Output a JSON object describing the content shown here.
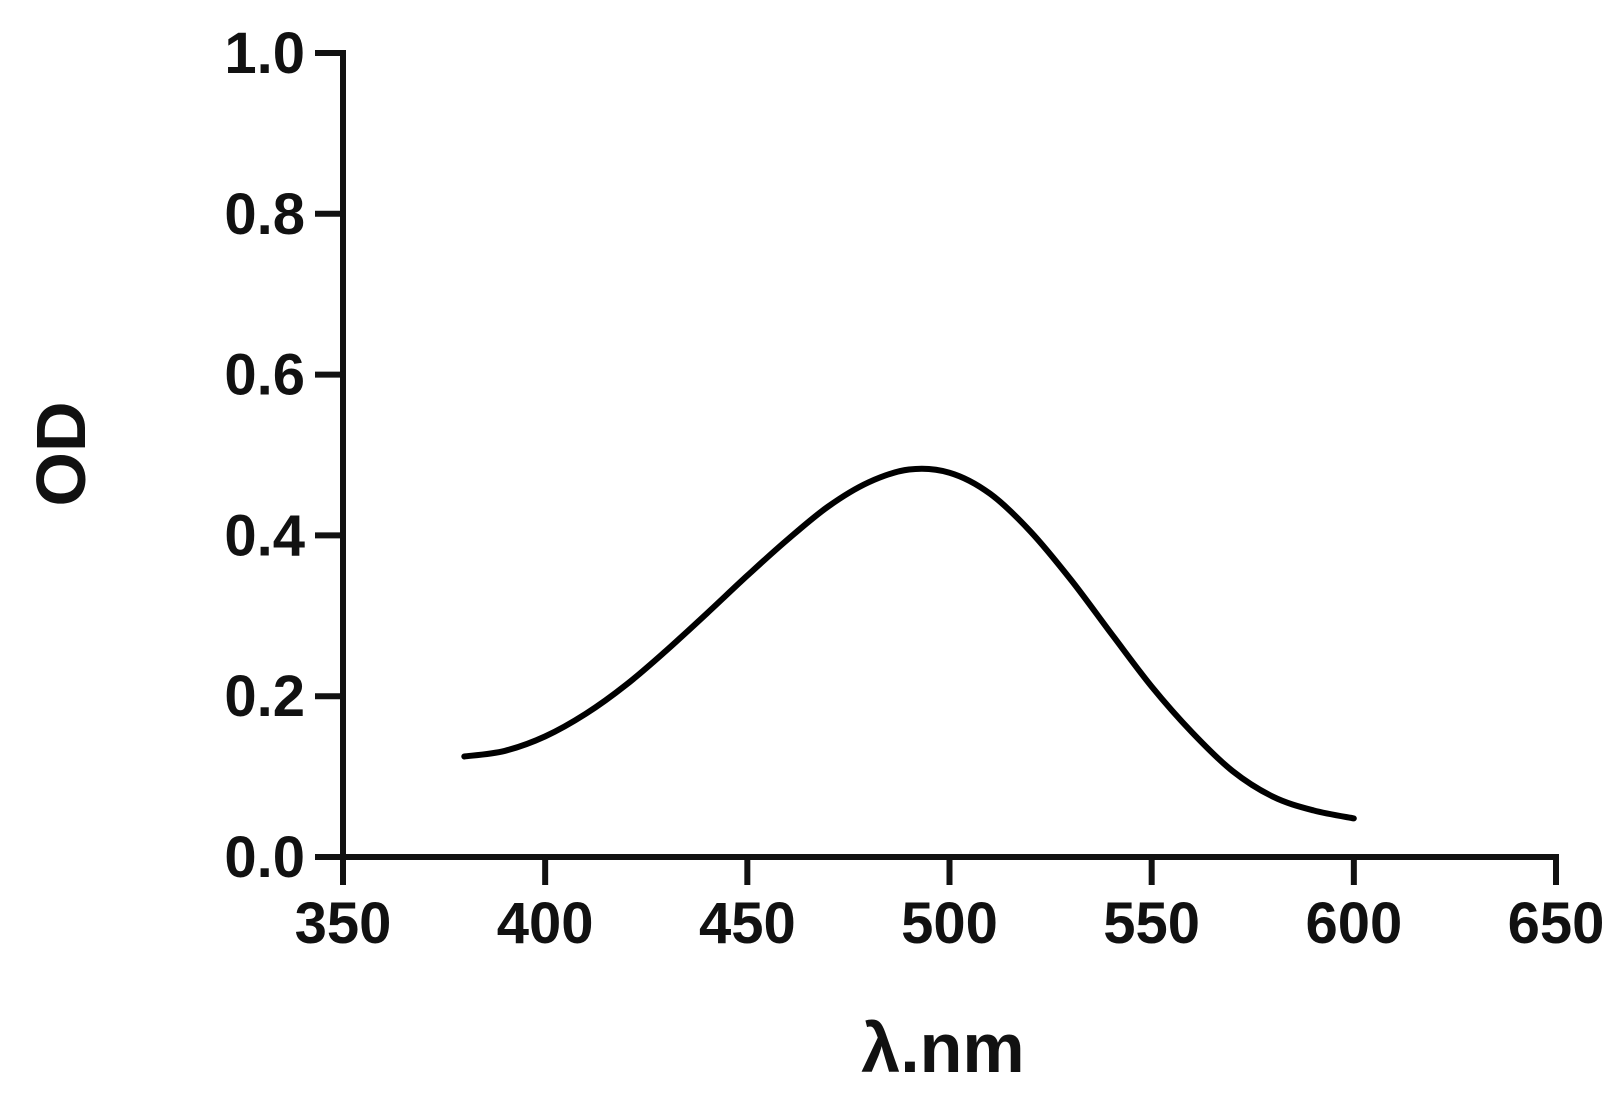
{
  "chart_data": {
    "type": "line",
    "title": "",
    "xlabel": "λ.nm",
    "ylabel": "OD",
    "xlim": [
      350,
      650
    ],
    "ylim": [
      0.0,
      1.0
    ],
    "x_ticks": [
      "350",
      "400",
      "450",
      "500",
      "550",
      "600",
      "650"
    ],
    "y_ticks": [
      "0.0",
      "0.2",
      "0.4",
      "0.6",
      "0.8",
      "1.0"
    ],
    "grid": false,
    "legend": "none",
    "line_color": "#000000",
    "series": [
      {
        "x": [
          380,
          390,
          400,
          410,
          420,
          430,
          440,
          450,
          460,
          470,
          480,
          490,
          500,
          510,
          520,
          530,
          540,
          550,
          560,
          570,
          580,
          590,
          600
        ],
        "y": [
          0.125,
          0.132,
          0.15,
          0.178,
          0.214,
          0.257,
          0.303,
          0.35,
          0.395,
          0.436,
          0.466,
          0.482,
          0.478,
          0.452,
          0.405,
          0.345,
          0.278,
          0.212,
          0.155,
          0.107,
          0.075,
          0.058,
          0.048
        ]
      }
    ]
  }
}
